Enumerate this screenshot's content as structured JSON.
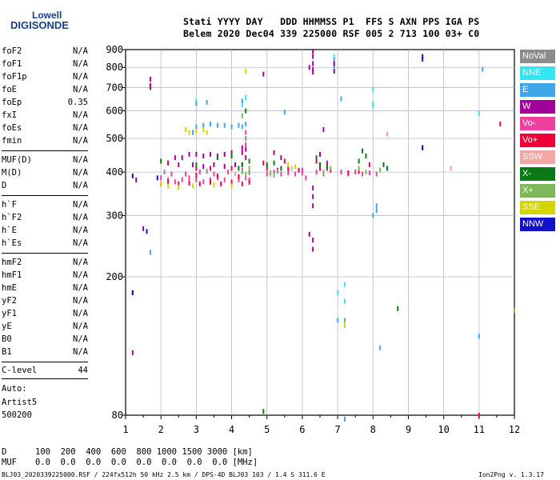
{
  "logo": {
    "line1": "Lowell",
    "line2": "DIGISONDE"
  },
  "header": {
    "line1": "Stati YYYY DAY   DDD HHMMSS P1  FFS S AXN PPS IGA PS",
    "line2": "Belem 2020 Dec04 339 225000 RSF 005 2 713 100 03+ C0"
  },
  "params_group1": [
    {
      "name": "foF2",
      "value": "N/A"
    },
    {
      "name": "foF1",
      "value": "N/A"
    },
    {
      "name": "foF1p",
      "value": "N/A"
    },
    {
      "name": "foE",
      "value": "N/A"
    },
    {
      "name": "foEp",
      "value": "0.35"
    },
    {
      "name": "fxI",
      "value": "N/A"
    },
    {
      "name": "foEs",
      "value": "N/A"
    },
    {
      "name": "fmin",
      "value": "N/A"
    }
  ],
  "params_group2": [
    {
      "name": "MUF(D)",
      "value": "N/A"
    },
    {
      "name": "M(D)",
      "value": "N/A"
    },
    {
      "name": "D",
      "value": "N/A"
    }
  ],
  "params_group3": [
    {
      "name": "h`F",
      "value": "N/A"
    },
    {
      "name": "h`F2",
      "value": "N/A"
    },
    {
      "name": "h`E",
      "value": "N/A"
    },
    {
      "name": "h`Es",
      "value": "N/A"
    }
  ],
  "params_group4": [
    {
      "name": "hmF2",
      "value": "N/A"
    },
    {
      "name": "hmF1",
      "value": "N/A"
    },
    {
      "name": "hmE",
      "value": "N/A"
    },
    {
      "name": "yF2",
      "value": "N/A"
    },
    {
      "name": "yF1",
      "value": "N/A"
    },
    {
      "name": "yE",
      "value": "N/A"
    },
    {
      "name": "B0",
      "value": "N/A"
    },
    {
      "name": "B1",
      "value": "N/A"
    }
  ],
  "clevel": {
    "name": "C-level",
    "value": "44"
  },
  "auto": {
    "line1": "Auto:",
    "line2": "Artist5",
    "line3": "500200"
  },
  "legend": [
    {
      "label": "NoVal",
      "color": "#8c8c8c"
    },
    {
      "label": "NNE",
      "color": "#33e6f2"
    },
    {
      "label": "E",
      "color": "#3fa6ea"
    },
    {
      "label": "W",
      "color": "#a3009a"
    },
    {
      "label": "Vo-",
      "color": "#ee3fa0"
    },
    {
      "label": "Vo+",
      "color": "#ef0039"
    },
    {
      "label": "SSW",
      "color": "#f2a7a5"
    },
    {
      "label": "X-",
      "color": "#0b7a14"
    },
    {
      "label": "X+",
      "color": "#7fb85a"
    },
    {
      "label": "SSE",
      "color": "#d4d400"
    },
    {
      "label": "NNW",
      "color": "#1212c8"
    }
  ],
  "footer": {
    "dist_label": "D",
    "dist_values": "100  200  400  600  800 1000 1500 3000 [km]",
    "muf_label": "MUF",
    "muf_values": "0.0  0.0  0.0  0.0  0.0  0.0  0.0  0.0 [MHz]",
    "filename": "BLJ03_2020339225000.RSF / 224fx512h 50 kHz 2.5 km / DPS-4D BLJ03 103 / 1.4 S 311.6 E",
    "version": "Ion2Png v. 1.3.17"
  },
  "chart_data": {
    "type": "scatter",
    "xlabel": "",
    "ylabel": "",
    "x_ticks": [
      1,
      2,
      3,
      4,
      5,
      6,
      7,
      8,
      9,
      10,
      11,
      12
    ],
    "y_ticks": [
      80,
      200,
      300,
      400,
      500,
      600,
      700,
      800,
      900
    ],
    "xlim": [
      1,
      12
    ],
    "ylim": [
      80,
      900
    ],
    "y_scale": "log",
    "grid": true,
    "legend_position": "right",
    "series": [
      {
        "name": "NNE",
        "color": "#33e6f2",
        "points": [
          [
            6.9,
            860
          ],
          [
            6.9,
            800
          ],
          [
            7.0,
            180
          ],
          [
            7.2,
            190
          ],
          [
            7.2,
            170
          ],
          [
            8.0,
            690
          ],
          [
            8.0,
            630
          ],
          [
            8.0,
            620
          ],
          [
            11.0,
            590
          ],
          [
            3.0,
            640
          ],
          [
            4.3,
            625
          ],
          [
            4.4,
            655
          ]
        ]
      },
      {
        "name": "E",
        "color": "#3fa6ea",
        "points": [
          [
            2.9,
            520
          ],
          [
            3.0,
            540
          ],
          [
            3.2,
            545
          ],
          [
            3.4,
            550
          ],
          [
            3.6,
            545
          ],
          [
            3.8,
            545
          ],
          [
            4.0,
            540
          ],
          [
            4.2,
            545
          ],
          [
            4.4,
            550
          ],
          [
            4.3,
            540
          ],
          [
            3.0,
            630
          ],
          [
            3.3,
            635
          ],
          [
            4.3,
            640
          ],
          [
            5.5,
            595
          ],
          [
            7.1,
            650
          ],
          [
            8.1,
            320
          ],
          [
            8.1,
            310
          ],
          [
            8.0,
            300
          ],
          [
            1.7,
            235
          ],
          [
            7.0,
            150
          ],
          [
            11.0,
            135
          ],
          [
            8.2,
            125
          ],
          [
            7.2,
            78
          ],
          [
            11.1,
            790
          ],
          [
            6.9,
            840
          ],
          [
            6.9,
            810
          ]
        ]
      },
      {
        "name": "W",
        "color": "#a3009a",
        "points": [
          [
            1.7,
            740
          ],
          [
            1.7,
            710
          ],
          [
            1.7,
            700
          ],
          [
            1.3,
            380
          ],
          [
            1.5,
            275
          ],
          [
            1.2,
            180
          ],
          [
            1.2,
            121
          ],
          [
            6.3,
            890
          ],
          [
            6.3,
            860
          ],
          [
            6.3,
            820
          ],
          [
            6.3,
            790
          ],
          [
            6.3,
            775
          ],
          [
            6.2,
            800
          ],
          [
            6.9,
            820
          ],
          [
            6.9,
            780
          ],
          [
            6.3,
            360
          ],
          [
            6.3,
            340
          ],
          [
            6.3,
            320
          ],
          [
            6.2,
            265
          ],
          [
            6.3,
            255
          ],
          [
            6.3,
            240
          ],
          [
            6.5,
            450
          ],
          [
            6.7,
            425
          ],
          [
            6.7,
            410
          ],
          [
            4.9,
            765
          ],
          [
            6.6,
            530
          ],
          [
            9.4,
            470
          ],
          [
            2.4,
            440
          ],
          [
            2.6,
            440
          ],
          [
            2.8,
            450
          ],
          [
            3.0,
            450
          ],
          [
            3.2,
            445
          ],
          [
            3.4,
            450
          ],
          [
            3.6,
            445
          ],
          [
            3.8,
            450
          ],
          [
            4.0,
            455
          ],
          [
            4.3,
            470
          ],
          [
            4.4,
            465
          ],
          [
            4.3,
            455
          ],
          [
            4.4,
            440
          ],
          [
            5.2,
            455
          ],
          [
            5.4,
            440
          ],
          [
            2.2,
            425
          ],
          [
            2.5,
            420
          ],
          [
            2.9,
            420
          ],
          [
            3.2,
            415
          ],
          [
            3.5,
            420
          ],
          [
            3.8,
            415
          ],
          [
            4.1,
            420
          ],
          [
            4.3,
            420
          ]
        ]
      },
      {
        "name": "Vo-",
        "color": "#ee3fa0",
        "points": [
          [
            2.0,
            385
          ],
          [
            2.2,
            380
          ],
          [
            2.4,
            375
          ],
          [
            2.6,
            380
          ],
          [
            2.8,
            385
          ],
          [
            3.0,
            380
          ],
          [
            3.2,
            375
          ],
          [
            3.4,
            380
          ],
          [
            3.6,
            385
          ],
          [
            3.8,
            380
          ],
          [
            4.0,
            375
          ],
          [
            4.2,
            380
          ],
          [
            4.4,
            385
          ],
          [
            4.5,
            380
          ],
          [
            2.3,
            395
          ],
          [
            2.7,
            395
          ],
          [
            3.1,
            400
          ],
          [
            3.5,
            395
          ],
          [
            3.9,
            400
          ],
          [
            4.3,
            405
          ],
          [
            5.0,
            395
          ],
          [
            5.2,
            400
          ],
          [
            5.4,
            395
          ],
          [
            5.6,
            398
          ],
          [
            5.8,
            395
          ],
          [
            6.0,
            398
          ],
          [
            6.4,
            400
          ],
          [
            6.6,
            395
          ],
          [
            4.4,
            480
          ],
          [
            4.4,
            500
          ],
          [
            4.4,
            520
          ],
          [
            6.1,
            385
          ],
          [
            6.0,
            405
          ],
          [
            7.5,
            400
          ],
          [
            7.7,
            395
          ],
          [
            7.9,
            398
          ],
          [
            8.1,
            395
          ],
          [
            10.2,
            410
          ],
          [
            8.4,
            515
          ],
          [
            7.3,
            395
          ],
          [
            7.1,
            400
          ]
        ]
      },
      {
        "name": "Vo+",
        "color": "#ef0039",
        "points": [
          [
            2.0,
            370
          ],
          [
            2.2,
            375
          ],
          [
            2.5,
            370
          ],
          [
            2.8,
            372
          ],
          [
            3.1,
            370
          ],
          [
            3.4,
            374
          ],
          [
            3.7,
            370
          ],
          [
            4.0,
            372
          ],
          [
            4.3,
            370
          ],
          [
            4.5,
            374
          ],
          [
            3.0,
            392
          ],
          [
            3.6,
            390
          ],
          [
            4.2,
            388
          ],
          [
            5.0,
            410
          ],
          [
            5.3,
            405
          ],
          [
            5.6,
            410
          ],
          [
            5.9,
            405
          ],
          [
            6.5,
            410
          ],
          [
            6.8,
            405
          ],
          [
            7.3,
            398
          ],
          [
            7.6,
            402
          ],
          [
            4.9,
            425
          ],
          [
            5.5,
            430
          ],
          [
            6.4,
            430
          ],
          [
            11.6,
            550
          ],
          [
            11.0,
            80
          ],
          [
            2.2,
            425
          ],
          [
            3.0,
            410
          ],
          [
            3.4,
            410
          ],
          [
            4.0,
            410
          ],
          [
            7.9,
            420
          ]
        ]
      },
      {
        "name": "SSW",
        "color": "#f2a7a5",
        "points": [
          [
            10.2,
            410
          ],
          [
            8.4,
            515
          ],
          [
            4.1,
            395
          ],
          [
            5.1,
            395
          ],
          [
            5.7,
            410
          ]
        ]
      },
      {
        "name": "X-",
        "color": "#0b7a14",
        "points": [
          [
            4.3,
            420
          ],
          [
            4.5,
            430
          ],
          [
            4.2,
            410
          ],
          [
            3.6,
            440
          ],
          [
            4.0,
            445
          ],
          [
            5.0,
            420
          ],
          [
            5.2,
            425
          ],
          [
            5.4,
            410
          ],
          [
            6.5,
            420
          ],
          [
            6.7,
            415
          ],
          [
            7.6,
            430
          ],
          [
            7.8,
            445
          ],
          [
            7.7,
            460
          ],
          [
            8.3,
            420
          ],
          [
            8.4,
            410
          ],
          [
            8.7,
            162
          ],
          [
            4.9,
            82
          ],
          [
            6.4,
            440
          ],
          [
            3.0,
            420
          ],
          [
            2.0,
            430
          ],
          [
            4.4,
            600
          ]
        ]
      },
      {
        "name": "X+",
        "color": "#7fb85a",
        "points": [
          [
            4.3,
            400
          ],
          [
            4.4,
            395
          ],
          [
            4.5,
            410
          ],
          [
            5.1,
            398
          ],
          [
            5.2,
            392
          ],
          [
            6.6,
            400
          ],
          [
            6.8,
            410
          ],
          [
            7.6,
            410
          ],
          [
            7.8,
            400
          ],
          [
            8.2,
            405
          ],
          [
            7.2,
            150
          ],
          [
            12.0,
            160
          ],
          [
            4.4,
            500
          ],
          [
            4.3,
            580
          ]
        ]
      },
      {
        "name": "SSE",
        "color": "#d4d400",
        "points": [
          [
            2.7,
            530
          ],
          [
            2.8,
            520
          ],
          [
            3.0,
            525
          ],
          [
            3.2,
            530
          ],
          [
            3.3,
            520
          ],
          [
            2.0,
            370
          ],
          [
            2.2,
            365
          ],
          [
            2.5,
            362
          ],
          [
            2.9,
            365
          ],
          [
            3.5,
            368
          ],
          [
            4.0,
            365
          ],
          [
            4.4,
            780
          ],
          [
            7.2,
            145
          ],
          [
            5.6,
            420
          ],
          [
            5.8,
            415
          ]
        ]
      },
      {
        "name": "NNW",
        "color": "#1212c8",
        "points": [
          [
            9.4,
            860
          ],
          [
            9.4,
            845
          ],
          [
            9.4,
            470
          ],
          [
            1.2,
            390
          ],
          [
            1.6,
            270
          ],
          [
            1.9,
            385
          ],
          [
            1.2,
            180
          ]
        ]
      },
      {
        "name": "NoVal",
        "color": "#8c8c8c",
        "points": [
          [
            2.1,
            400
          ],
          [
            3.3,
            402
          ],
          [
            4.5,
            398
          ],
          [
            5.3,
            402
          ]
        ]
      }
    ]
  }
}
